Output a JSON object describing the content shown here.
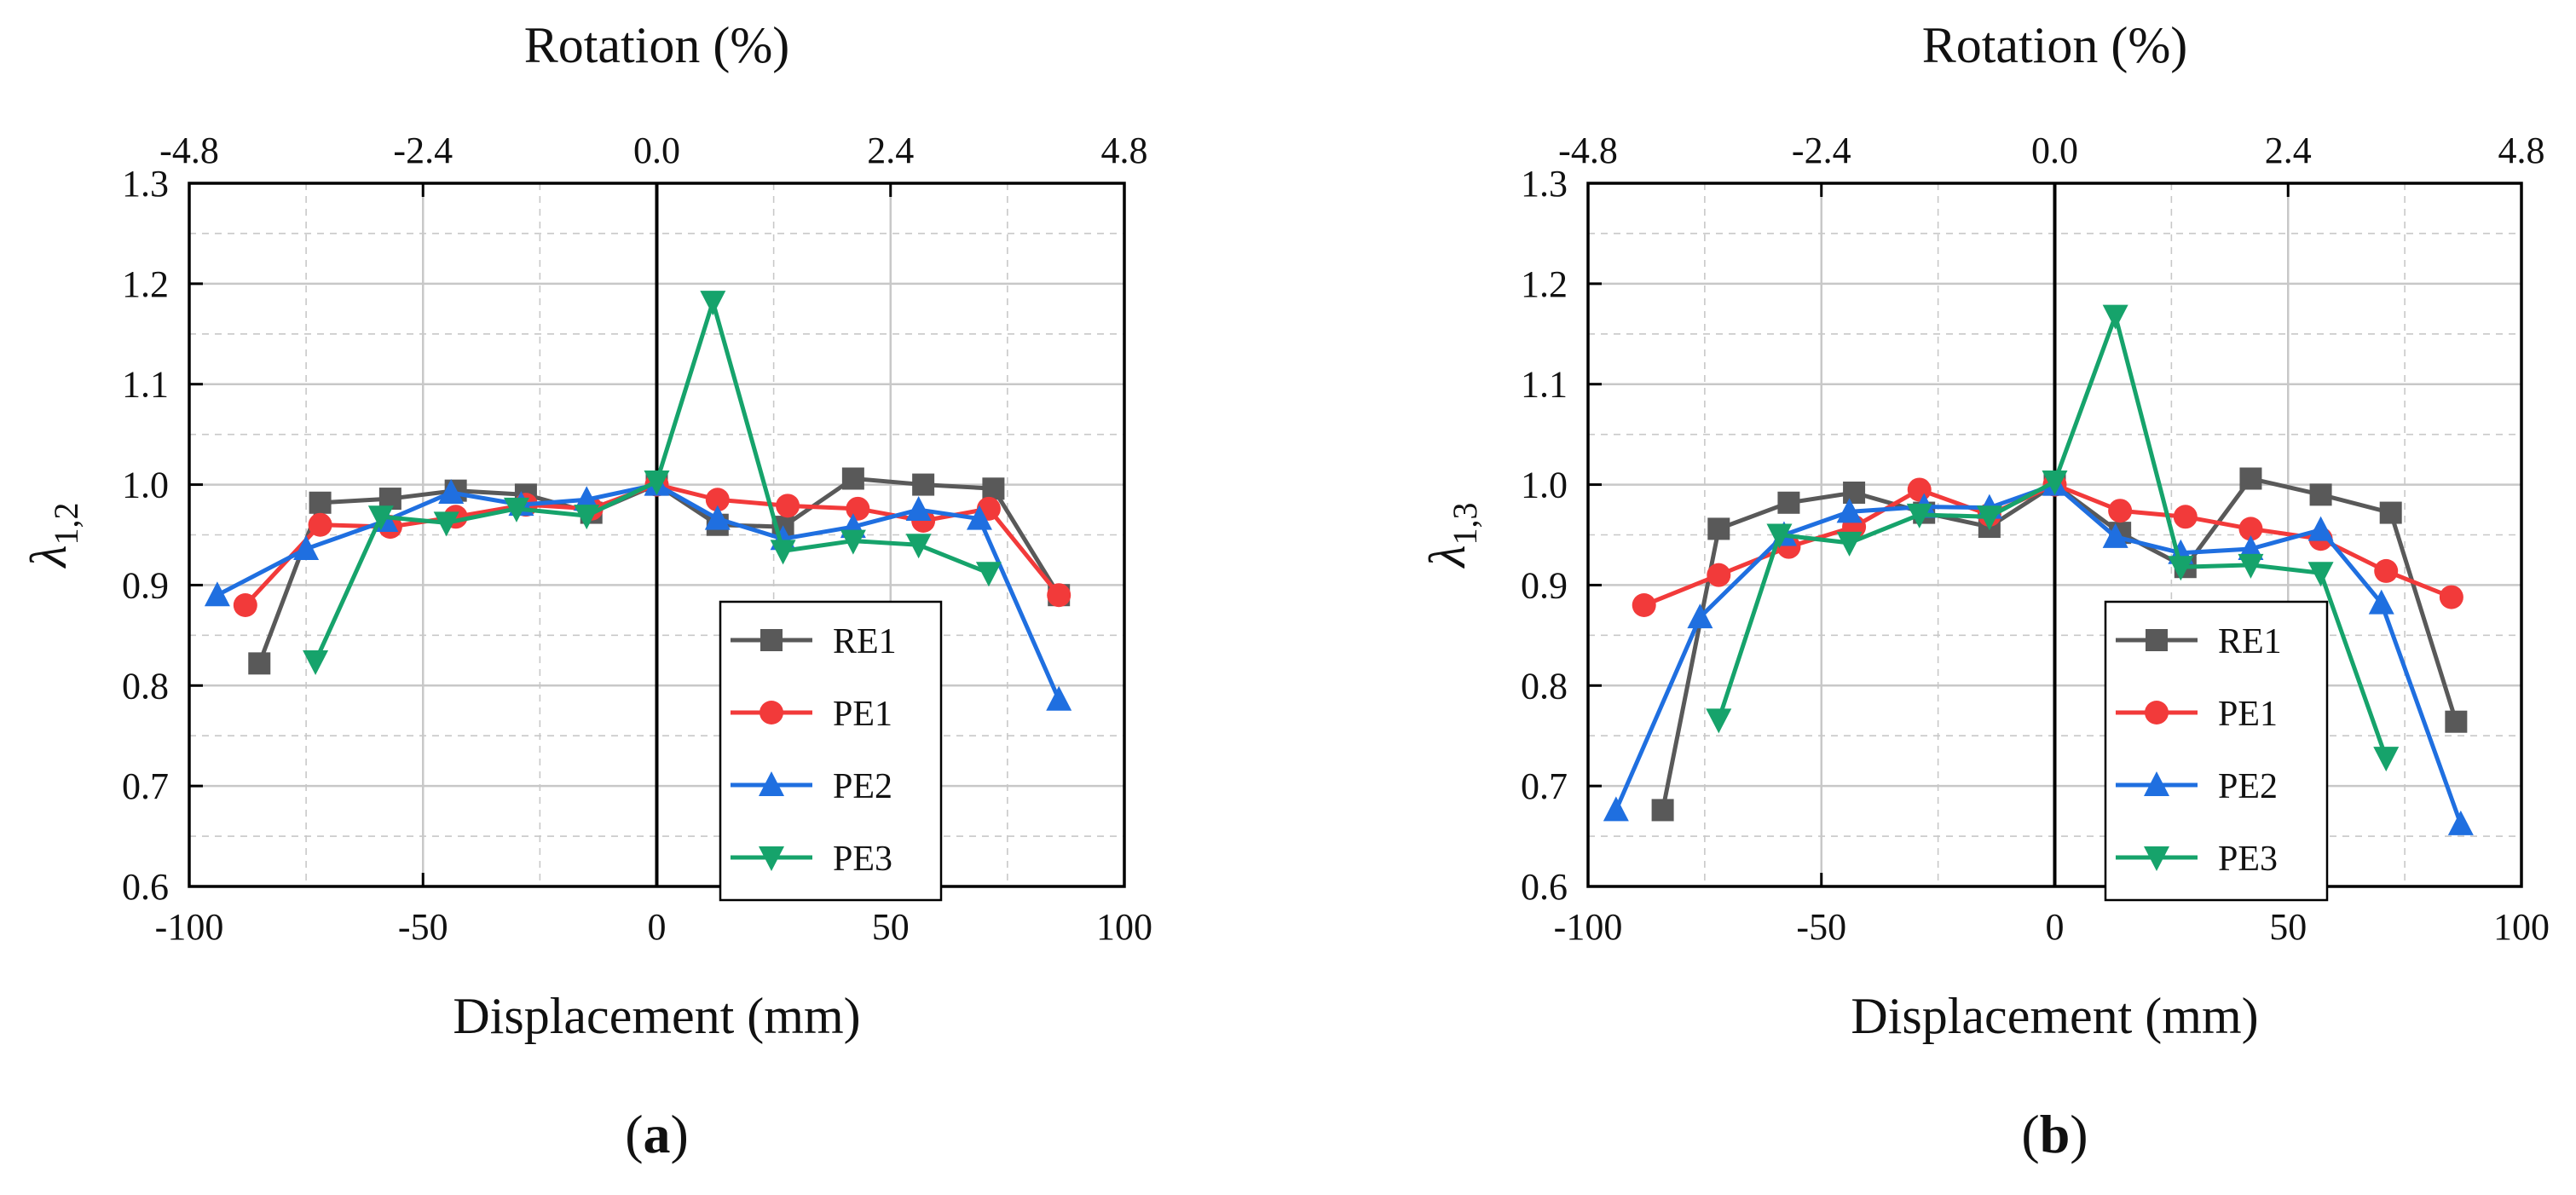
{
  "colors": {
    "RE1": "#595959",
    "PE1": "#f23a3a",
    "PE2": "#1f6fe0",
    "PE3": "#16a36b",
    "grid": "#c8c8c8",
    "axis": "#000000"
  },
  "chart_data": [
    {
      "type": "line",
      "panel_label_open": "(",
      "panel_label_letter": "a",
      "panel_label_close": ")",
      "xlabel": "Displacement (mm)",
      "x2label": "Rotation (%)",
      "ylabel_symbol": "λ",
      "ylabel_subscript": "1,2",
      "xlim": [
        -100,
        100
      ],
      "ylim": [
        0.6,
        1.3
      ],
      "xticks": [
        "-100",
        "-50",
        "0",
        "50",
        "100"
      ],
      "x2ticks": [
        "-4.8",
        "-2.4",
        "0.0",
        "2.4",
        "4.8"
      ],
      "yticks": [
        "0.6",
        "0.7",
        "0.8",
        "0.9",
        "1.0",
        "1.1",
        "1.2",
        "1.3"
      ],
      "legend_position": "lower-right",
      "series": [
        {
          "name": "RE1",
          "marker": "square",
          "x": [
            -85,
            -72,
            -57,
            -43,
            -28,
            -14,
            0,
            13,
            27,
            42,
            57,
            72,
            86
          ],
          "y": [
            0.822,
            0.982,
            0.986,
            0.994,
            0.99,
            0.972,
            1.0,
            0.96,
            0.958,
            1.006,
            1.0,
            0.996,
            0.89
          ]
        },
        {
          "name": "PE1",
          "marker": "circle",
          "x": [
            -88,
            -72,
            -57,
            -43,
            -28,
            -14,
            0,
            13,
            28,
            43,
            57,
            71,
            86
          ],
          "y": [
            0.88,
            0.96,
            0.958,
            0.968,
            0.98,
            0.976,
            1.0,
            0.985,
            0.979,
            0.976,
            0.964,
            0.976,
            0.89
          ]
        },
        {
          "name": "PE2",
          "marker": "triangle-up",
          "x": [
            -94,
            -75,
            -58,
            -44,
            -29,
            -15,
            0,
            13,
            27,
            42,
            56,
            69,
            86
          ],
          "y": [
            0.89,
            0.936,
            0.964,
            0.992,
            0.98,
            0.985,
            1.0,
            0.966,
            0.946,
            0.958,
            0.975,
            0.966,
            0.786
          ]
        },
        {
          "name": "PE3",
          "marker": "triangle-down",
          "x": [
            -73,
            -59,
            -45,
            -30,
            -15,
            0,
            12,
            27,
            42,
            56,
            71
          ],
          "y": [
            0.824,
            0.968,
            0.962,
            0.976,
            0.969,
            1.003,
            1.182,
            0.934,
            0.944,
            0.94,
            0.912
          ]
        }
      ]
    },
    {
      "type": "line",
      "panel_label_open": "(",
      "panel_label_letter": "b",
      "panel_label_close": ")",
      "xlabel": "Displacement (mm)",
      "x2label": "Rotation (%)",
      "ylabel_symbol": "λ",
      "ylabel_subscript": "1,3",
      "xlim": [
        -100,
        100
      ],
      "ylim": [
        0.6,
        1.3
      ],
      "xticks": [
        "-100",
        "-50",
        "0",
        "50",
        "100"
      ],
      "x2ticks": [
        "-4.8",
        "-2.4",
        "0.0",
        "2.4",
        "4.8"
      ],
      "yticks": [
        "0.6",
        "0.7",
        "0.8",
        "0.9",
        "1.0",
        "1.1",
        "1.2",
        "1.3"
      ],
      "legend_position": "lower-right",
      "series": [
        {
          "name": "RE1",
          "marker": "square",
          "x": [
            -84,
            -72,
            -57,
            -43,
            -28,
            -14,
            0,
            14,
            28,
            42,
            57,
            72,
            86
          ],
          "y": [
            0.676,
            0.956,
            0.982,
            0.992,
            0.972,
            0.958,
            1.0,
            0.952,
            0.918,
            1.006,
            0.99,
            0.972,
            0.764
          ]
        },
        {
          "name": "PE1",
          "marker": "circle",
          "x": [
            -88,
            -72,
            -57,
            -43,
            -29,
            -14,
            0,
            14,
            28,
            42,
            57,
            71,
            85
          ],
          "y": [
            0.88,
            0.91,
            0.938,
            0.958,
            0.995,
            0.97,
            1.0,
            0.974,
            0.968,
            0.956,
            0.946,
            0.914,
            0.888
          ]
        },
        {
          "name": "PE2",
          "marker": "triangle-up",
          "x": [
            -94,
            -76,
            -58,
            -44,
            -28,
            -14,
            0,
            13,
            27,
            42,
            57,
            70,
            87
          ],
          "y": [
            0.676,
            0.868,
            0.95,
            0.973,
            0.978,
            0.977,
            1.0,
            0.948,
            0.932,
            0.936,
            0.955,
            0.882,
            0.662
          ]
        },
        {
          "name": "PE3",
          "marker": "triangle-down",
          "x": [
            -72,
            -59,
            -44,
            -29,
            -14,
            0,
            13,
            27,
            42,
            57,
            71
          ],
          "y": [
            0.766,
            0.95,
            0.942,
            0.97,
            0.968,
            1.003,
            1.168,
            0.918,
            0.92,
            0.912,
            0.728
          ]
        }
      ]
    }
  ]
}
